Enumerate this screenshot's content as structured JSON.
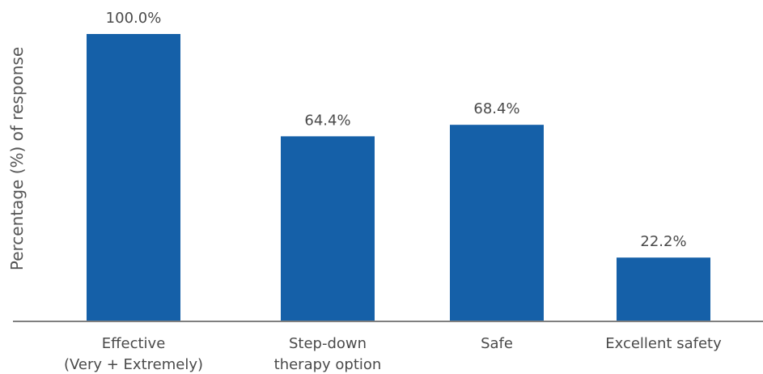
{
  "chart_data": {
    "type": "bar",
    "title": "",
    "xlabel": "",
    "ylabel": "Percentage (%) of response",
    "categories": [
      [
        "Effective",
        "(Very + Extremely)"
      ],
      [
        "Step-down",
        "therapy option"
      ],
      [
        "Safe"
      ],
      [
        "Excellent safety"
      ]
    ],
    "values": [
      100.0,
      64.4,
      68.4,
      22.2
    ],
    "data_labels": [
      "100.0%",
      "64.4%",
      "68.4%",
      "22.2%"
    ],
    "ylim": [
      0,
      100
    ],
    "grid": false,
    "legend": "none",
    "colors": {
      "bar": "#1560a8",
      "axis": "#7f7f7f",
      "text": "#4a4a4a"
    }
  }
}
